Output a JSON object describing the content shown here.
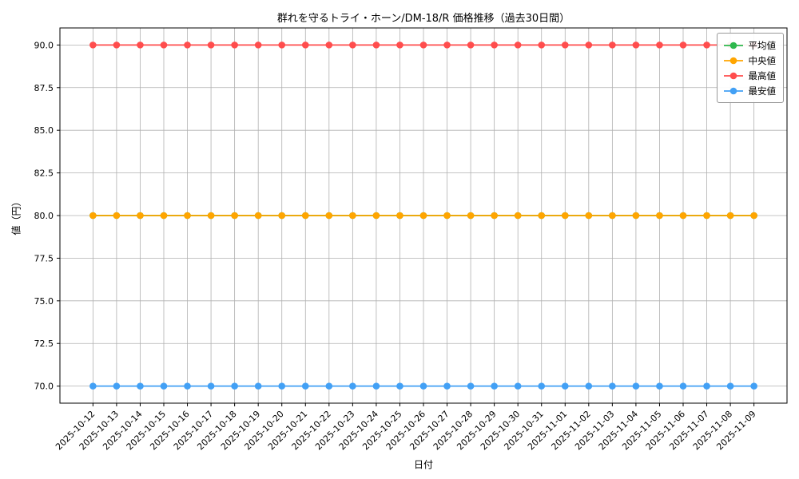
{
  "chart_data": {
    "type": "line",
    "title": "群れを守るトライ・ホーン/DM-18/R 価格推移（過去30日間）",
    "xlabel": "日付",
    "ylabel": "値（円）",
    "ylim": [
      69,
      91
    ],
    "yticks": [
      70.0,
      72.5,
      75.0,
      77.5,
      80.0,
      82.5,
      85.0,
      87.5,
      90.0
    ],
    "grid": true,
    "legend_position": "upper right",
    "categories": [
      "2025-10-12",
      "2025-10-13",
      "2025-10-14",
      "2025-10-15",
      "2025-10-16",
      "2025-10-17",
      "2025-10-18",
      "2025-10-19",
      "2025-10-20",
      "2025-10-21",
      "2025-10-22",
      "2025-10-23",
      "2025-10-24",
      "2025-10-25",
      "2025-10-26",
      "2025-10-27",
      "2025-10-28",
      "2025-10-29",
      "2025-10-30",
      "2025-10-31",
      "2025-11-01",
      "2025-11-02",
      "2025-11-03",
      "2025-11-04",
      "2025-11-05",
      "2025-11-06",
      "2025-11-07",
      "2025-11-08",
      "2025-11-09"
    ],
    "series": [
      {
        "name": "平均値",
        "color": "#2db84d",
        "values": [
          80,
          80,
          80,
          80,
          80,
          80,
          80,
          80,
          80,
          80,
          80,
          80,
          80,
          80,
          80,
          80,
          80,
          80,
          80,
          80,
          80,
          80,
          80,
          80,
          80,
          80,
          80,
          80,
          80
        ]
      },
      {
        "name": "中央値",
        "color": "#ffa500",
        "values": [
          80,
          80,
          80,
          80,
          80,
          80,
          80,
          80,
          80,
          80,
          80,
          80,
          80,
          80,
          80,
          80,
          80,
          80,
          80,
          80,
          80,
          80,
          80,
          80,
          80,
          80,
          80,
          80,
          80
        ]
      },
      {
        "name": "最高値",
        "color": "#ff4d4d",
        "values": [
          90,
          90,
          90,
          90,
          90,
          90,
          90,
          90,
          90,
          90,
          90,
          90,
          90,
          90,
          90,
          90,
          90,
          90,
          90,
          90,
          90,
          90,
          90,
          90,
          90,
          90,
          90,
          90,
          90
        ]
      },
      {
        "name": "最安値",
        "color": "#42a0f5",
        "values": [
          70,
          70,
          70,
          70,
          70,
          70,
          70,
          70,
          70,
          70,
          70,
          70,
          70,
          70,
          70,
          70,
          70,
          70,
          70,
          70,
          70,
          70,
          70,
          70,
          70,
          70,
          70,
          70,
          70
        ]
      }
    ],
    "colors": {
      "grid": "#b0b0b0",
      "axis": "#000000",
      "background": "#ffffff"
    }
  }
}
